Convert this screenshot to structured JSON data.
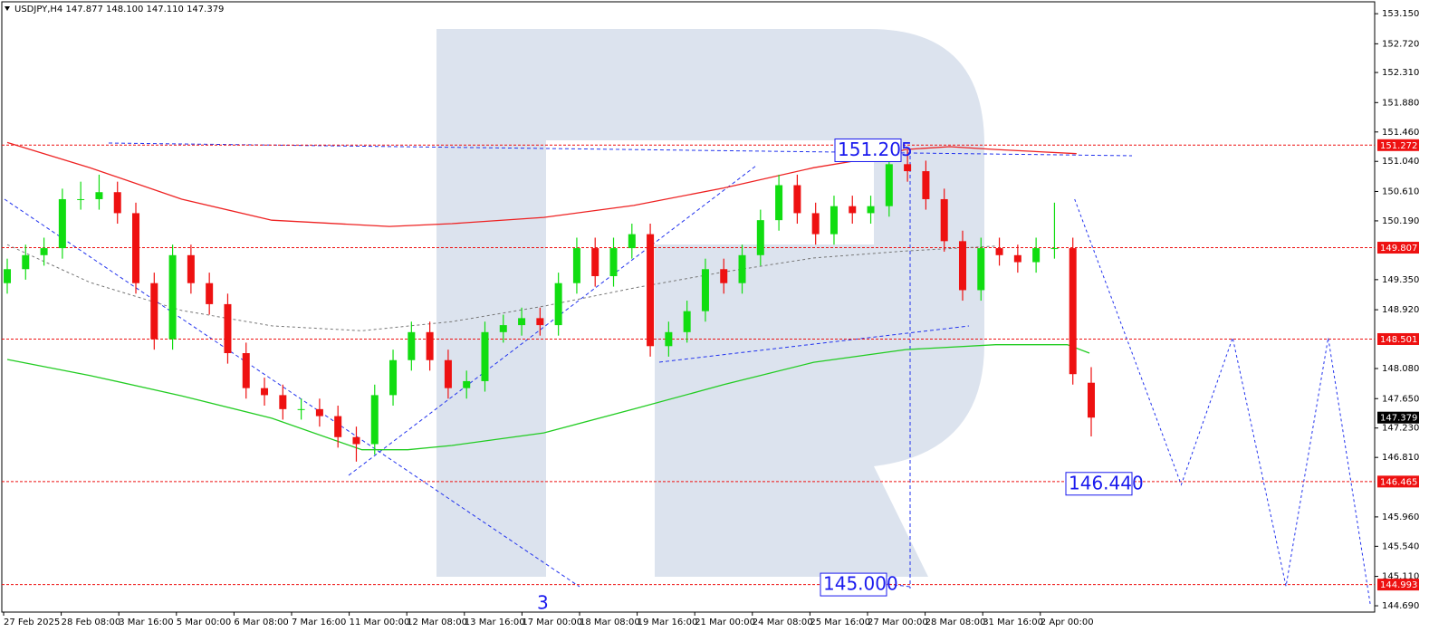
{
  "chart_data": {
    "type": "candlestick",
    "header": "USDJPY,H4 147.877 148.100 147.110 147.379",
    "ylim": [
      144.6,
      153.32
    ],
    "yticks": [
      {
        "value": 153.15,
        "label": "153.150"
      },
      {
        "value": 152.72,
        "label": "152.720"
      },
      {
        "value": 152.31,
        "label": "152.310"
      },
      {
        "value": 151.88,
        "label": "151.880"
      },
      {
        "value": 151.46,
        "label": "151.460"
      },
      {
        "value": 151.04,
        "label": "151.040"
      },
      {
        "value": 150.61,
        "label": "150.610"
      },
      {
        "value": 150.19,
        "label": "150.190"
      },
      {
        "value": 149.35,
        "label": "149.350"
      },
      {
        "value": 148.92,
        "label": "148.920"
      },
      {
        "value": 148.08,
        "label": "148.080"
      },
      {
        "value": 147.65,
        "label": "147.650"
      },
      {
        "value": 147.23,
        "label": "147.230"
      },
      {
        "value": 146.81,
        "label": "146.810"
      },
      {
        "value": 145.96,
        "label": "145.960"
      },
      {
        "value": 145.54,
        "label": "145.540"
      },
      {
        "value": 145.11,
        "label": "145.110"
      },
      {
        "value": 144.69,
        "label": "144.690"
      }
    ],
    "x_labels": [
      "27 Feb 2025",
      "28 Feb 08:00",
      "3 Mar 16:00",
      "5 Mar 00:00",
      "6 Mar 08:00",
      "7 Mar 16:00",
      "11 Mar 00:00",
      "12 Mar 08:00",
      "13 Mar 16:00",
      "17 Mar 00:00",
      "18 Mar 08:00",
      "19 Mar 16:00",
      "21 Mar 00:00",
      "24 Mar 08:00",
      "25 Mar 16:00",
      "27 Mar 00:00",
      "28 Mar 08:00",
      "31 Mar 16:00",
      "2 Apr 00:00"
    ],
    "up_color": "#11dd11",
    "down_color": "#ee1111",
    "ohlc": [
      [
        149.3,
        149.65,
        149.15,
        149.5
      ],
      [
        149.5,
        149.85,
        149.35,
        149.7
      ],
      [
        149.7,
        149.95,
        149.55,
        149.8
      ],
      [
        149.8,
        150.65,
        149.65,
        150.5
      ],
      [
        150.5,
        150.75,
        150.35,
        150.5
      ],
      [
        150.5,
        150.85,
        150.35,
        150.6
      ],
      [
        150.6,
        150.75,
        150.15,
        150.3
      ],
      [
        150.3,
        150.45,
        149.15,
        149.3
      ],
      [
        149.3,
        149.45,
        148.35,
        148.5
      ],
      [
        148.5,
        149.85,
        148.35,
        149.7
      ],
      [
        149.7,
        149.85,
        149.15,
        149.3
      ],
      [
        149.3,
        149.45,
        148.85,
        149.0
      ],
      [
        149.0,
        149.15,
        148.15,
        148.3
      ],
      [
        148.3,
        148.45,
        147.65,
        147.8
      ],
      [
        147.8,
        147.95,
        147.55,
        147.7
      ],
      [
        147.7,
        147.85,
        147.35,
        147.5
      ],
      [
        147.5,
        147.65,
        147.35,
        147.5
      ],
      [
        147.5,
        147.65,
        147.25,
        147.4
      ],
      [
        147.4,
        147.55,
        146.95,
        147.1
      ],
      [
        147.1,
        147.25,
        146.75,
        147.0
      ],
      [
        147.0,
        147.85,
        146.85,
        147.7
      ],
      [
        147.7,
        148.35,
        147.55,
        148.2
      ],
      [
        148.2,
        148.75,
        148.05,
        148.6
      ],
      [
        148.6,
        148.75,
        148.05,
        148.2
      ],
      [
        148.2,
        148.35,
        147.65,
        147.8
      ],
      [
        147.8,
        148.05,
        147.65,
        147.9
      ],
      [
        147.9,
        148.75,
        147.75,
        148.6
      ],
      [
        148.6,
        148.85,
        148.45,
        148.7
      ],
      [
        148.7,
        148.95,
        148.55,
        148.8
      ],
      [
        148.8,
        148.95,
        148.55,
        148.7
      ],
      [
        148.7,
        149.45,
        148.55,
        149.3
      ],
      [
        149.3,
        149.95,
        149.15,
        149.8
      ],
      [
        149.8,
        149.95,
        149.25,
        149.4
      ],
      [
        149.4,
        149.95,
        149.25,
        149.8
      ],
      [
        149.8,
        150.15,
        149.65,
        150.0
      ],
      [
        150.0,
        150.15,
        148.25,
        148.4
      ],
      [
        148.4,
        148.75,
        148.25,
        148.6
      ],
      [
        148.6,
        149.05,
        148.45,
        148.9
      ],
      [
        148.9,
        149.65,
        148.75,
        149.5
      ],
      [
        149.5,
        149.65,
        149.15,
        149.3
      ],
      [
        149.3,
        149.85,
        149.15,
        149.7
      ],
      [
        149.7,
        150.35,
        149.55,
        150.2
      ],
      [
        150.2,
        150.85,
        150.05,
        150.7
      ],
      [
        150.7,
        150.85,
        150.15,
        150.3
      ],
      [
        150.3,
        150.45,
        149.85,
        150.0
      ],
      [
        150.0,
        150.55,
        149.85,
        150.4
      ],
      [
        150.4,
        150.55,
        150.15,
        150.3
      ],
      [
        150.3,
        150.55,
        150.15,
        150.4
      ],
      [
        150.4,
        151.15,
        150.25,
        151.0
      ],
      [
        151.0,
        151.2,
        150.75,
        150.9
      ],
      [
        150.9,
        151.05,
        150.35,
        150.5
      ],
      [
        150.5,
        150.65,
        149.75,
        149.9
      ],
      [
        149.9,
        150.05,
        149.05,
        149.2
      ],
      [
        149.2,
        149.95,
        149.05,
        149.8
      ],
      [
        149.8,
        149.95,
        149.55,
        149.7
      ],
      [
        149.7,
        149.85,
        149.45,
        149.6
      ],
      [
        149.6,
        149.95,
        149.45,
        149.8
      ],
      [
        149.8,
        150.45,
        149.65,
        149.8
      ],
      [
        149.8,
        149.95,
        147.85,
        148.0
      ],
      [
        147.877,
        148.1,
        147.11,
        147.379
      ]
    ],
    "indicators": [
      {
        "color": "#ee2222",
        "dash": false,
        "at": [
          0,
          4.5,
          9.5,
          14.4,
          20.8,
          24.2,
          29.2,
          34.1,
          39,
          43.9,
          46.9,
          48.9,
          51.3,
          53.8,
          58.2
        ],
        "values": [
          151.31,
          150.95,
          150.5,
          150.2,
          150.11,
          150.15,
          150.24,
          150.41,
          150.66,
          150.95,
          151.08,
          151.21,
          151.25,
          151.21,
          151.15
        ]
      },
      {
        "color": "#22cc22",
        "dash": false,
        "at": [
          0,
          4.5,
          9.5,
          14.4,
          19.3,
          21.8,
          24.2,
          29.2,
          34.1,
          39,
          43.9,
          48.9,
          53.8,
          57.7,
          58.9
        ],
        "values": [
          148.21,
          147.98,
          147.69,
          147.37,
          146.92,
          146.92,
          146.98,
          147.16,
          147.5,
          147.85,
          148.17,
          148.35,
          148.42,
          148.42,
          148.3
        ]
      },
      {
        "color": "#777777",
        "dash": true,
        "at": [
          0,
          4.5,
          9.5,
          14.4,
          19.3,
          24.2,
          29.2,
          34.1,
          39,
          43.9,
          48.9,
          53.8
        ],
        "values": [
          149.85,
          149.31,
          148.91,
          148.69,
          148.62,
          148.75,
          148.97,
          149.23,
          149.46,
          149.66,
          149.76,
          149.83
        ]
      },
      {
        "color": "#2233ee",
        "dash": true,
        "at": [
          58.1,
          63.9,
          66.7,
          69.6,
          71.9,
          74.2
        ],
        "values": [
          150.5,
          146.42,
          148.52,
          144.97,
          148.52,
          144.69
        ]
      }
    ],
    "levels": [
      {
        "value": 151.272,
        "color": "#ee1111",
        "line": true
      },
      {
        "value": 149.807,
        "color": "#ee1111",
        "line": true
      },
      {
        "value": 148.501,
        "color": "#ee1111",
        "line": true
      },
      {
        "value": 147.379,
        "color": "#000000",
        "line": false
      },
      {
        "value": 146.465,
        "color": "#ee1111",
        "line": true
      },
      {
        "value": 144.993,
        "color": "#ee1111",
        "line": true
      }
    ],
    "annotations": [
      {
        "value": 151.205,
        "label": "151.205"
      },
      {
        "value": 146.44,
        "label": "146.440"
      },
      {
        "value": 145.0,
        "label": "145.000"
      }
    ],
    "wave_label": "3"
  }
}
